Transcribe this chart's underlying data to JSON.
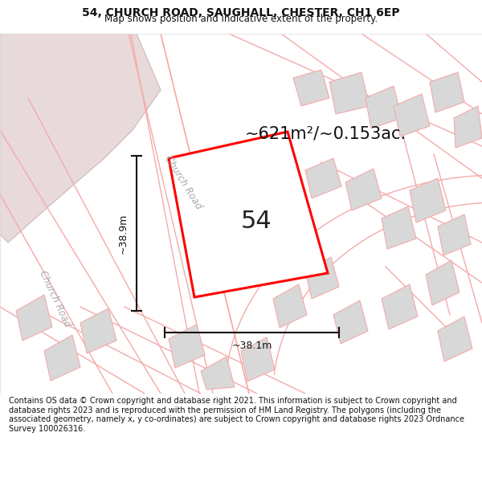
{
  "title": "54, CHURCH ROAD, SAUGHALL, CHESTER, CH1 6EP",
  "subtitle": "Map shows position and indicative extent of the property.",
  "area_text": "~621m²/~0.153ac.",
  "property_number": "54",
  "width_label": "~38.1m",
  "height_label": "~38.9m",
  "road_label_diag": "Church Road",
  "road_label_vert": "Church Road",
  "footer": "Contains OS data © Crown copyright and database right 2021. This information is subject to Crown copyright and database rights 2023 and is reproduced with the permission of HM Land Registry. The polygons (including the associated geometry, namely x, y co-ordinates) are subject to Crown copyright and database rights 2023 Ordnance Survey 100026316.",
  "bg_color": "#ffffff",
  "map_bg": "#ffffff",
  "property_fill": "#ffffff",
  "property_edge": "#ff0000",
  "building_fill": "#d8d8d8",
  "road_line_color": "#f5aaaa",
  "road_outline_color": "#e8c8c8",
  "pink_area_fill": "#e8dada",
  "footer_bg": "#ffffff",
  "header_bg": "#ffffff",
  "dim_color": "#111111",
  "label_color": "#aaaaaa",
  "text_color": "#111111"
}
